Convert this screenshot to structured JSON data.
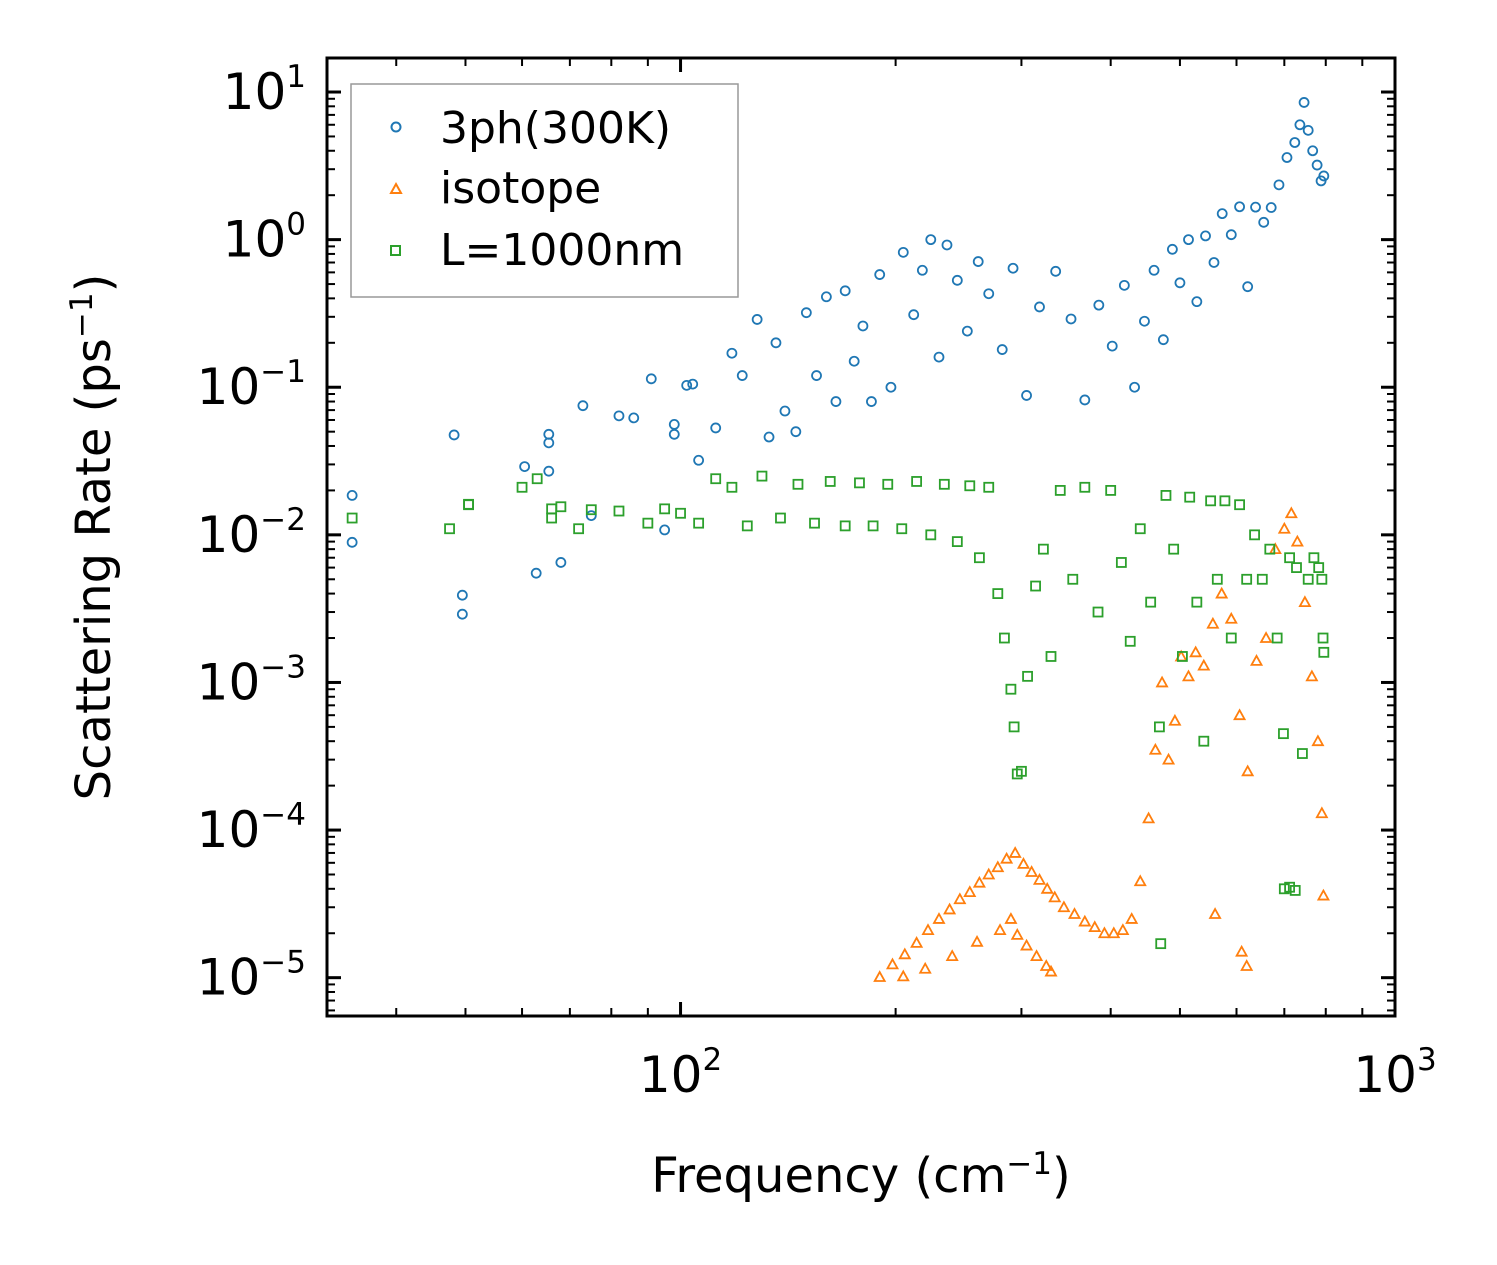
{
  "chart_data": {
    "type": "scatter",
    "xscale": "log",
    "yscale": "log",
    "xlim": [
      32,
      1000
    ],
    "ylim": [
      5.5e-06,
      17
    ],
    "xlabel": {
      "base": "Frequency (cm",
      "sup": "−1",
      "close": ")"
    },
    "ylabel": {
      "base": "Scattering Rate (ps",
      "sup": "−1",
      "close": ")"
    },
    "xticks": [
      {
        "value": 100,
        "base": "10",
        "exp": "2"
      },
      {
        "value": 1000,
        "base": "10",
        "exp": "3"
      }
    ],
    "yticks": [
      {
        "value": 10,
        "base": "10",
        "exp": "1"
      },
      {
        "value": 1,
        "base": "10",
        "exp": "0"
      },
      {
        "value": 0.1,
        "base": "10",
        "exp": "−1"
      },
      {
        "value": 0.01,
        "base": "10",
        "exp": "−2"
      },
      {
        "value": 0.001,
        "base": "10",
        "exp": "−3"
      },
      {
        "value": 0.0001,
        "base": "10",
        "exp": "−4"
      },
      {
        "value": 1e-05,
        "base": "10",
        "exp": "−5"
      }
    ],
    "legend_position": "top-left",
    "series": [
      {
        "name": "3ph(300K)",
        "marker": "circle",
        "color": "#1f77b4",
        "points": [
          [
            34.7,
            0.0185
          ],
          [
            34.7,
            0.0089
          ],
          [
            48.2,
            0.0475
          ],
          [
            49.5,
            0.0039
          ],
          [
            49.5,
            0.0029
          ],
          [
            60.5,
            0.029
          ],
          [
            62.8,
            0.0055
          ],
          [
            65.4,
            0.048
          ],
          [
            65.4,
            0.042
          ],
          [
            65.4,
            0.027
          ],
          [
            68.0,
            0.0065
          ],
          [
            73.0,
            0.075
          ],
          [
            75.0,
            0.0135
          ],
          [
            82.0,
            0.064
          ],
          [
            86.0,
            0.062
          ],
          [
            91.0,
            0.114
          ],
          [
            95.0,
            0.0108
          ],
          [
            98.0,
            0.056
          ],
          [
            98.0,
            0.048
          ],
          [
            102.0,
            0.103
          ],
          [
            104.0,
            0.105
          ],
          [
            106.0,
            0.032
          ],
          [
            112.0,
            0.053
          ],
          [
            118.0,
            0.17
          ],
          [
            122.0,
            0.12
          ],
          [
            128.0,
            0.288
          ],
          [
            133.0,
            0.046
          ],
          [
            136.0,
            0.2
          ],
          [
            140.0,
            0.069
          ],
          [
            145.0,
            0.05
          ],
          [
            150.0,
            0.32
          ],
          [
            155.0,
            0.12
          ],
          [
            160.0,
            0.41
          ],
          [
            165.0,
            0.08
          ],
          [
            170.0,
            0.45
          ],
          [
            175.0,
            0.15
          ],
          [
            180.0,
            0.26
          ],
          [
            185.0,
            0.08
          ],
          [
            190.0,
            0.58
          ],
          [
            197.0,
            0.1
          ],
          [
            205.0,
            0.82
          ],
          [
            212.0,
            0.31
          ],
          [
            218.0,
            0.62
          ],
          [
            224.0,
            1.0
          ],
          [
            230.0,
            0.16
          ],
          [
            236.0,
            0.92
          ],
          [
            244.0,
            0.53
          ],
          [
            252.0,
            0.24
          ],
          [
            261.0,
            0.71
          ],
          [
            270.0,
            0.43
          ],
          [
            282.0,
            0.18
          ],
          [
            292.0,
            0.64
          ],
          [
            305.0,
            0.088
          ],
          [
            318.0,
            0.35
          ],
          [
            335.0,
            0.61
          ],
          [
            352.0,
            0.29
          ],
          [
            368.0,
            0.082
          ],
          [
            385.0,
            0.36
          ],
          [
            402.0,
            0.19
          ],
          [
            418.0,
            0.49
          ],
          [
            432.0,
            0.1
          ],
          [
            446.0,
            0.28
          ],
          [
            460.0,
            0.62
          ],
          [
            474.0,
            0.21
          ],
          [
            488.0,
            0.86
          ],
          [
            500.0,
            0.51
          ],
          [
            514.0,
            1.0
          ],
          [
            528.0,
            0.38
          ],
          [
            543.0,
            1.06
          ],
          [
            558.0,
            0.7
          ],
          [
            573.0,
            1.5
          ],
          [
            590.0,
            1.08
          ],
          [
            606.0,
            1.67
          ],
          [
            622.0,
            0.48
          ],
          [
            638.0,
            1.66
          ],
          [
            655.0,
            1.31
          ],
          [
            671.0,
            1.65
          ],
          [
            688.0,
            2.35
          ],
          [
            706.0,
            3.6
          ],
          [
            724.0,
            4.55
          ],
          [
            736.0,
            6.0
          ],
          [
            746.0,
            8.5
          ],
          [
            756.0,
            5.5
          ],
          [
            767.0,
            4.0
          ],
          [
            778.0,
            3.2
          ],
          [
            788.0,
            2.5
          ],
          [
            795.0,
            2.7
          ]
        ]
      },
      {
        "name": "isotope",
        "marker": "triangle",
        "color": "#ff7f0e",
        "points": [
          [
            190.0,
            1.01e-05
          ],
          [
            198.0,
            1.23e-05
          ],
          [
            206.0,
            1.44e-05
          ],
          [
            214.0,
            1.72e-05
          ],
          [
            222.0,
            2.1e-05
          ],
          [
            230.0,
            2.5e-05
          ],
          [
            238.0,
            2.9e-05
          ],
          [
            246.0,
            3.4e-05
          ],
          [
            254.0,
            3.8e-05
          ],
          [
            262.0,
            4.4e-05
          ],
          [
            270.0,
            5e-05
          ],
          [
            278.0,
            5.6e-05
          ],
          [
            286.0,
            6.4e-05
          ],
          [
            294.0,
            7e-05
          ],
          [
            302.0,
            5.9e-05
          ],
          [
            310.0,
            5.2e-05
          ],
          [
            318.0,
            4.6e-05
          ],
          [
            326.0,
            4e-05
          ],
          [
            334.0,
            3.5e-05
          ],
          [
            344.0,
            3e-05
          ],
          [
            356.0,
            2.7e-05
          ],
          [
            368.0,
            2.4e-05
          ],
          [
            380.0,
            2.2e-05
          ],
          [
            392.0,
            2e-05
          ],
          [
            404.0,
            2e-05
          ],
          [
            416.0,
            2.1e-05
          ],
          [
            428.0,
            2.5e-05
          ],
          [
            440.0,
            4.5e-05
          ],
          [
            452.0,
            0.00012
          ],
          [
            462.0,
            0.00035
          ],
          [
            472.0,
            0.001
          ],
          [
            482.0,
            0.0003
          ],
          [
            492.0,
            0.00055
          ],
          [
            502.0,
            0.0015
          ],
          [
            514.0,
            0.0011
          ],
          [
            526.0,
            0.0016
          ],
          [
            540.0,
            0.0013
          ],
          [
            556.0,
            0.0025
          ],
          [
            572.0,
            0.004
          ],
          [
            590.0,
            0.0027
          ],
          [
            606.0,
            0.0006
          ],
          [
            622.0,
            0.00025
          ],
          [
            640.0,
            0.0014
          ],
          [
            660.0,
            0.002
          ],
          [
            680.0,
            0.008
          ],
          [
            700.0,
            0.011
          ],
          [
            716.0,
            0.014
          ],
          [
            730.0,
            0.009
          ],
          [
            748.0,
            0.0035
          ],
          [
            765.0,
            0.0011
          ],
          [
            780.0,
            0.0004
          ],
          [
            790.0,
            0.00013
          ],
          [
            794.0,
            3.6e-05
          ],
          [
            205.0,
            1.02e-05
          ],
          [
            220.0,
            1.15e-05
          ],
          [
            240.0,
            1.4e-05
          ],
          [
            260.0,
            1.75e-05
          ],
          [
            280.0,
            2.1e-05
          ],
          [
            290.0,
            2.5e-05
          ],
          [
            296.0,
            1.95e-05
          ],
          [
            305.0,
            1.65e-05
          ],
          [
            315.0,
            1.4e-05
          ],
          [
            325.0,
            1.2e-05
          ],
          [
            330.0,
            1.1e-05
          ],
          [
            560.0,
            2.7e-05
          ],
          [
            610.0,
            1.5e-05
          ],
          [
            620.0,
            1.2e-05
          ]
        ]
      },
      {
        "name": "L=1000nm",
        "marker": "square",
        "color": "#2ca02c",
        "points": [
          [
            34.7,
            0.013
          ],
          [
            47.5,
            0.011
          ],
          [
            50.5,
            0.016
          ],
          [
            50.5,
            0.0161
          ],
          [
            60.0,
            0.021
          ],
          [
            63.0,
            0.024
          ],
          [
            66.0,
            0.013
          ],
          [
            66.0,
            0.015
          ],
          [
            68.0,
            0.0155
          ],
          [
            72.0,
            0.011
          ],
          [
            75.0,
            0.0148
          ],
          [
            82.0,
            0.0145
          ],
          [
            90.0,
            0.012
          ],
          [
            95.0,
            0.015
          ],
          [
            100.0,
            0.014
          ],
          [
            106.0,
            0.012
          ],
          [
            112.0,
            0.024
          ],
          [
            118.0,
            0.021
          ],
          [
            124.0,
            0.0115
          ],
          [
            130.0,
            0.025
          ],
          [
            138.0,
            0.013
          ],
          [
            146.0,
            0.022
          ],
          [
            154.0,
            0.012
          ],
          [
            162.0,
            0.023
          ],
          [
            170.0,
            0.0115
          ],
          [
            178.0,
            0.0225
          ],
          [
            186.0,
            0.0115
          ],
          [
            195.0,
            0.022
          ],
          [
            204.0,
            0.011
          ],
          [
            214.0,
            0.023
          ],
          [
            224.0,
            0.01
          ],
          [
            234.0,
            0.022
          ],
          [
            244.0,
            0.009
          ],
          [
            254.0,
            0.0215
          ],
          [
            262.0,
            0.007
          ],
          [
            270.0,
            0.021
          ],
          [
            278.0,
            0.004
          ],
          [
            284.0,
            0.002
          ],
          [
            290.0,
            0.0009
          ],
          [
            293.0,
            0.0005
          ],
          [
            296.0,
            0.00024
          ],
          [
            300.0,
            0.00025
          ],
          [
            306.0,
            0.0011
          ],
          [
            314.0,
            0.0045
          ],
          [
            322.0,
            0.008
          ],
          [
            330.0,
            0.0015
          ],
          [
            340.0,
            0.02
          ],
          [
            354.0,
            0.005
          ],
          [
            368.0,
            0.021
          ],
          [
            384.0,
            0.003
          ],
          [
            400.0,
            0.02
          ],
          [
            414.0,
            0.0065
          ],
          [
            426.0,
            0.0019
          ],
          [
            440.0,
            0.011
          ],
          [
            455.0,
            0.0035
          ],
          [
            468.0,
            0.0005
          ],
          [
            478.0,
            0.0185
          ],
          [
            490.0,
            0.008
          ],
          [
            504.0,
            0.0015
          ],
          [
            516.0,
            0.018
          ],
          [
            528.0,
            0.0035
          ],
          [
            540.0,
            0.0004
          ],
          [
            552.0,
            0.017
          ],
          [
            564.0,
            0.005
          ],
          [
            578.0,
            0.017
          ],
          [
            590.0,
            0.002
          ],
          [
            606.0,
            0.016
          ],
          [
            620.0,
            0.005
          ],
          [
            636.0,
            0.01
          ],
          [
            652.0,
            0.005
          ],
          [
            668.0,
            0.008
          ],
          [
            684.0,
            0.002
          ],
          [
            698.0,
            0.00045
          ],
          [
            712.0,
            0.007
          ],
          [
            728.0,
            0.006
          ],
          [
            742.0,
            0.00033
          ],
          [
            756.0,
            0.005
          ],
          [
            770.0,
            0.007
          ],
          [
            782.0,
            0.006
          ],
          [
            790.0,
            0.005
          ],
          [
            793.0,
            0.002
          ],
          [
            795.0,
            0.0016
          ],
          [
            700.0,
            4e-05
          ],
          [
            712.0,
            4.1e-05
          ],
          [
            725.0,
            3.9e-05
          ],
          [
            470.0,
            1.7e-05
          ]
        ]
      }
    ]
  }
}
